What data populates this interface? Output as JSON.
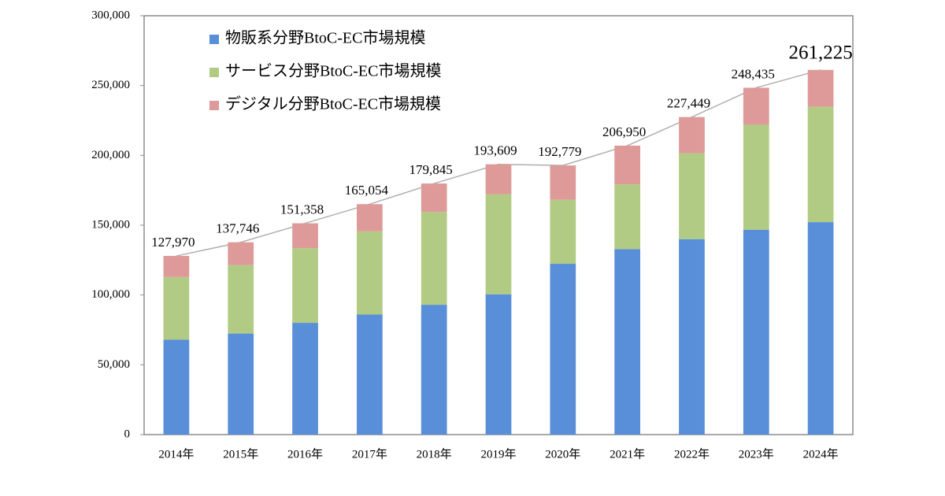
{
  "chart_data": {
    "type": "stacked_bar",
    "categories": [
      "2014年",
      "2015年",
      "2016年",
      "2017年",
      "2018年",
      "2019年",
      "2020年",
      "2021年",
      "2022年",
      "2023年",
      "2024年"
    ],
    "series": [
      {
        "name": "物販系分野BtoC-EC市場規模",
        "color": "#588fd8",
        "values": [
          68043,
          72398,
          80043,
          86008,
          92992,
          100515,
          122333,
          132865,
          139997,
          146760,
          152194
        ]
      },
      {
        "name": "サービス分野BtoC-EC市場規模",
        "color": "#b2cb84",
        "values": [
          44816,
          49014,
          53532,
          59568,
          66471,
          71672,
          45832,
          46424,
          61477,
          75169,
          82586
        ]
      },
      {
        "name": "デジタル分野BtoC-EC市場規模",
        "color": "#dd9a98",
        "values": [
          15111,
          16334,
          17782,
          19478,
          20382,
          21422,
          24614,
          27661,
          25974,
          26506,
          26445
        ]
      }
    ],
    "totals": {
      "values": [
        127970,
        137746,
        151358,
        165054,
        179845,
        193609,
        192779,
        206950,
        227449,
        248435,
        261225
      ],
      "value_labels": [
        "127,970",
        "137,746",
        "151,358",
        "165,054",
        "179,845",
        "193,609",
        "192,779",
        "206,950",
        "227,449",
        "248,435",
        "261,225"
      ]
    },
    "ylim": [
      0,
      300000
    ],
    "yticks": [
      0,
      {
        "value": 50000,
        "label": "50,000"
      },
      {
        "value": 100000,
        "label": "100,000"
      },
      {
        "value": 150000,
        "label": "150,000"
      },
      {
        "value": 200000,
        "label": "200,000"
      },
      {
        "value": 250000,
        "label": "250,000"
      },
      {
        "value": 300000,
        "label": "300,000"
      }
    ],
    "grid": false,
    "legend": "upper-left"
  }
}
